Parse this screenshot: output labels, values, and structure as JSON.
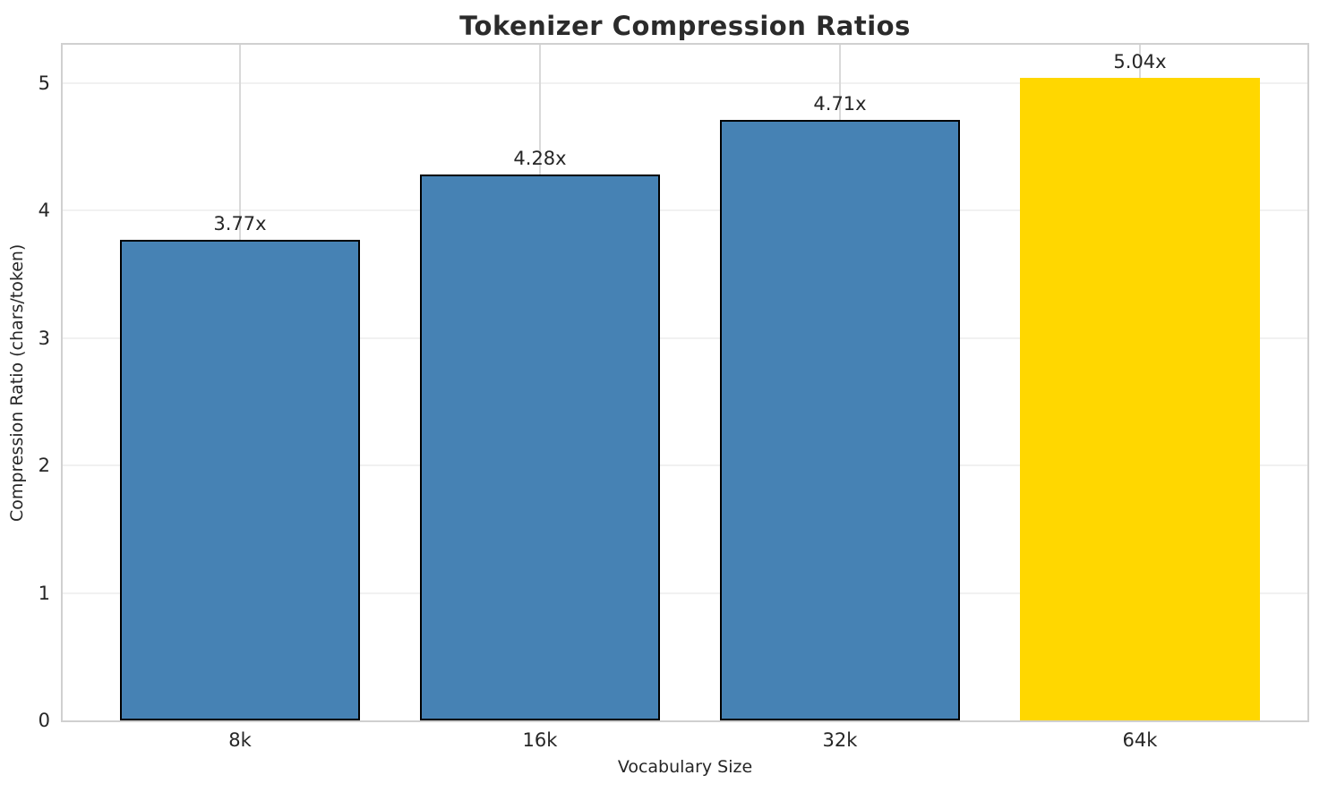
{
  "chart_data": {
    "type": "bar",
    "title": "Tokenizer Compression Ratios",
    "xlabel": "Vocabulary Size",
    "ylabel": "Compression Ratio (chars/token)",
    "categories": [
      "8k",
      "16k",
      "32k",
      "64k"
    ],
    "values": [
      3.77,
      4.28,
      4.71,
      5.04
    ],
    "bar_labels": [
      "3.77x",
      "4.28x",
      "4.71x",
      "5.04x"
    ],
    "highlighted_category": "64k",
    "yticks": [
      0,
      1,
      2,
      3,
      4,
      5
    ],
    "ylim": [
      0,
      5.3
    ],
    "grid": "both",
    "legend": "none",
    "bar_colors": [
      "#4682B4",
      "#4682B4",
      "#4682B4",
      "#FFD700"
    ],
    "bar_edges": [
      "#000000",
      "#000000",
      "#000000",
      "none"
    ],
    "colors": {
      "bar": "#4682B4",
      "highlight": "#FFD700",
      "bar_edge": "#000000",
      "background": "#FFFFFF",
      "spine": "#D0D0D0",
      "grid_vertical": "#D9D9D9",
      "grid_horizontal": "#F1F1F1",
      "text": "#262626"
    }
  }
}
